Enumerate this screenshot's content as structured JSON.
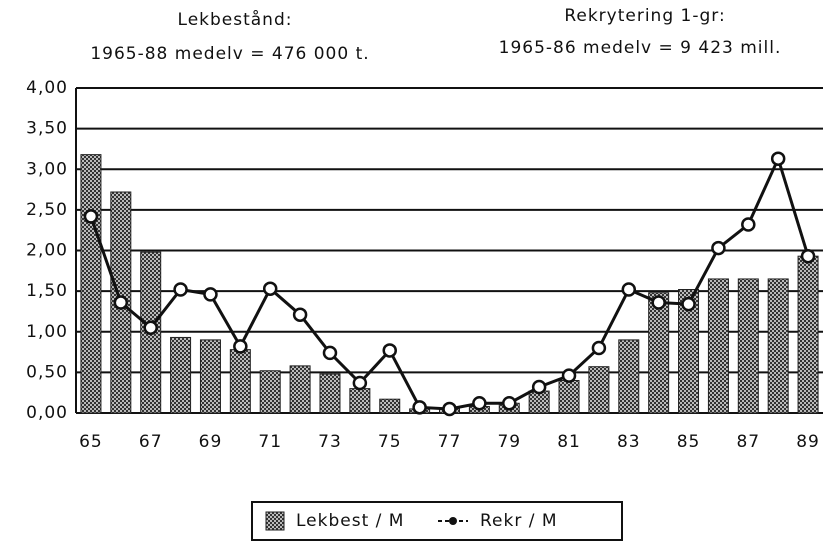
{
  "chart_data": {
    "type": "bar_line",
    "annotations": [
      "Lekbestånd:",
      "1965-88 medelv = 476 000 t.",
      "Rekrytering 1-gr:",
      "1965-86 medelv = 9 423 mill."
    ],
    "categories": [
      "65",
      null,
      "67",
      null,
      "69",
      null,
      "71",
      null,
      "73",
      null,
      "75",
      null,
      "77",
      null,
      "79",
      null,
      "81",
      null,
      "83",
      null,
      "85",
      null,
      "87",
      null,
      "89"
    ],
    "series": [
      {
        "name": "Lekbest / M",
        "kind": "bar",
        "color": "#555555",
        "values": [
          3.18,
          2.72,
          1.98,
          0.93,
          0.9,
          0.78,
          0.52,
          0.58,
          0.48,
          0.3,
          0.17,
          0.05,
          0.05,
          0.08,
          0.12,
          0.27,
          0.4,
          0.57,
          0.9,
          1.48,
          1.52,
          1.65,
          1.65,
          1.65,
          1.93
        ]
      },
      {
        "name": "Rekr / M",
        "kind": "line",
        "color": "#111111",
        "values": [
          2.42,
          1.36,
          1.05,
          1.52,
          1.46,
          0.82,
          1.53,
          1.21,
          0.74,
          0.37,
          0.77,
          0.07,
          0.05,
          0.12,
          0.12,
          0.32,
          0.46,
          0.8,
          1.52,
          1.36,
          1.34,
          2.03,
          2.32,
          3.13,
          1.93
        ]
      }
    ],
    "ylim": [
      0,
      4
    ],
    "yticks": [
      {
        "value": 0,
        "label": "0,00"
      },
      {
        "value": 0.5,
        "label": "0,50"
      },
      {
        "value": 1,
        "label": "1,00"
      },
      {
        "value": 1.5,
        "label": "1,50"
      },
      {
        "value": 2,
        "label": "2,00"
      },
      {
        "value": 2.5,
        "label": "2,50"
      },
      {
        "value": 3,
        "label": "3,00"
      },
      {
        "value": 3.5,
        "label": "3,50"
      },
      {
        "value": 4,
        "label": "4,00"
      }
    ],
    "grid": true,
    "legend": "bottom"
  }
}
